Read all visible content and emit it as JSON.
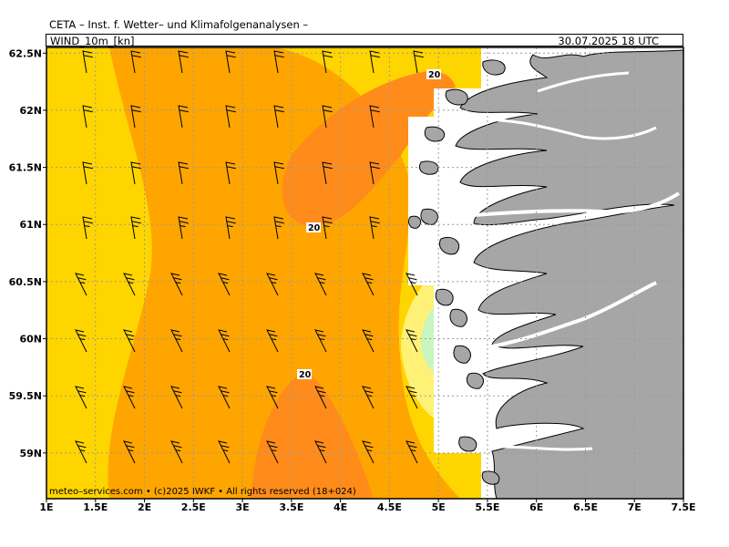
{
  "header": {
    "title": "CETA – Inst. f. Wetter– und Klimafolgenanalysen –",
    "parameter": "WIND_10m_[kn]",
    "valid_time": "30.07.2025 18 UTC"
  },
  "map": {
    "region": "Western Norway coast (Vestland)",
    "lon_range": [
      1,
      7.5
    ],
    "lat_range": [
      58.6,
      62.55
    ],
    "lon_ticks": [
      "1E",
      "1.5E",
      "2E",
      "2.5E",
      "3E",
      "3.5E",
      "4E",
      "4.5E",
      "5E",
      "5.5E",
      "6E",
      "6.5E",
      "7E",
      "7.5E"
    ],
    "lat_ticks": [
      "62.5N",
      "62N",
      "61.5N",
      "61N",
      "60.5N",
      "60N",
      "59.5N",
      "59N"
    ],
    "contour_labels": [
      "20",
      "20",
      "20"
    ],
    "colors": {
      "land": "#a6a6a6",
      "band_lt15": "#fff176",
      "band_15_20": "#ffd500",
      "band_20_25": "#ffa500",
      "band_25_30": "#ff8c1a",
      "calm": "#c8f5c0",
      "gridline": "#9a9a9a"
    }
  },
  "footer": {
    "credit": "meteo–services.com • (c)2025 IWKF • All rights reserved (18+024)"
  }
}
